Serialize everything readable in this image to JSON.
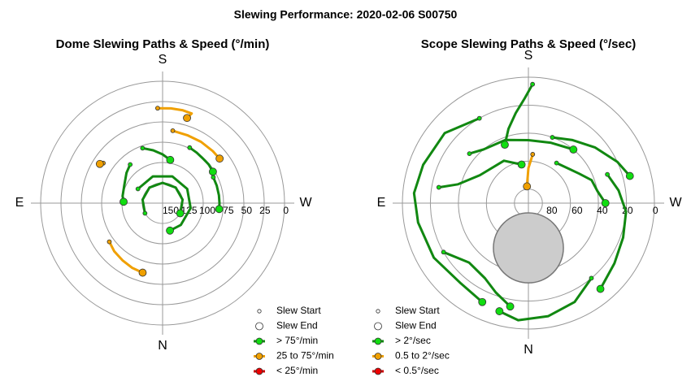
{
  "title": "Slewing Performance: 2020-02-06 S00750",
  "chart_data": [
    {
      "type": "polar",
      "title": "Dome Slewing Paths & Speed (°/min)",
      "directions": [
        "S",
        "W",
        "N",
        "E"
      ],
      "rlim": [
        150,
        0
      ],
      "rticks": [
        150,
        125,
        100,
        75,
        50,
        25,
        0
      ],
      "legend": [
        {
          "label": "Slew Start"
        },
        {
          "label": "Slew End"
        },
        {
          "label": "> 75°/min",
          "color": "#118811",
          "marker_color": "#11dd11"
        },
        {
          "label": "25 to 75°/min",
          "color": "#f0a000",
          "marker_color": "#f0a000"
        },
        {
          "label": "< 25°/min",
          "color": "#cc0000",
          "marker_color": "#ee0000"
        }
      ],
      "series": [
        {
          "color": "#f0a000",
          "marker_color": "#f0a000",
          "az": [
            177,
            185,
            192,
            198,
            196
          ],
          "alt": [
            33,
            33,
            33,
            34,
            41
          ]
        },
        {
          "color": "#f0a000",
          "marker_color": "#f0a000",
          "az": [
            188,
            200,
            212,
            224,
            232
          ],
          "alt": [
            60,
            61,
            61,
            61,
            61
          ]
        },
        {
          "color": "#118811",
          "marker_color": "#11dd11",
          "az": [
            206,
            214,
            222,
            230,
            238
          ],
          "alt": [
            74,
            75,
            76,
            76,
            77
          ]
        },
        {
          "color": "#118811",
          "marker_color": "#11dd11",
          "az": [
            243,
            252,
            262,
            270,
            276
          ],
          "alt": [
            80,
            80,
            80,
            80,
            80
          ]
        },
        {
          "color": "#118811",
          "marker_color": "#11dd11",
          "az": [
            120,
            160,
            200,
            240,
            280,
            320,
            345
          ],
          "alt": [
            115,
            115,
            115,
            115,
            115,
            115,
            115
          ]
        },
        {
          "color": "#118811",
          "marker_color": "#11dd11",
          "az": [
            60,
            100,
            140,
            180,
            220,
            260,
            300
          ],
          "alt": [
            125,
            125,
            125,
            125,
            125,
            125,
            125
          ]
        },
        {
          "color": "#118811",
          "marker_color": "#11dd11",
          "az": [
            140,
            130,
            115,
            100,
            92
          ],
          "alt": [
            88,
            92,
            98,
            100,
            102
          ]
        },
        {
          "color": "#118811",
          "marker_color": "#11dd11",
          "az": [
            160,
            170,
            180,
            190
          ],
          "alt": [
            78,
            84,
            90,
            96
          ]
        },
        {
          "color": "#f0a000",
          "marker_color": "#f0a000",
          "az": [
            54,
            45,
            35,
            25,
            16
          ],
          "alt": [
            69,
            66,
            64,
            62,
            61
          ]
        },
        {
          "color": "#f0a000",
          "marker_color": "#f0a000",
          "az": [
            124,
            122
          ],
          "alt": [
            62,
            59
          ]
        }
      ]
    },
    {
      "type": "polar",
      "title": "Scope Slewing Paths & Speed (°/sec)",
      "directions": [
        "S",
        "W",
        "N",
        "E"
      ],
      "rlim": [
        90,
        0
      ],
      "rticks": [
        80,
        60,
        40,
        20,
        0
      ],
      "exclusion": {
        "az": 0,
        "alt": 58,
        "radius": 25
      },
      "legend": [
        {
          "label": "Slew Start"
        },
        {
          "label": "Slew End"
        },
        {
          "label": "> 2°/sec",
          "color": "#118811",
          "marker_color": "#11dd11"
        },
        {
          "label": "0.5 to 2°/sec",
          "color": "#f0a000",
          "marker_color": "#f0a000"
        },
        {
          "label": "< 0.5°/sec",
          "color": "#cc0000",
          "marker_color": "#ee0000"
        }
      ],
      "series": [
        {
          "color": "#118811",
          "marker_color": "#11dd11",
          "az": [
            182,
            178,
            172,
            165,
            158
          ],
          "alt": [
            5,
            15,
            25,
            35,
            45
          ]
        },
        {
          "color": "#118811",
          "marker_color": "#11dd11",
          "az": [
            150,
            130,
            110,
            95,
            80,
            60,
            40,
            25
          ],
          "alt": [
            20,
            12,
            10,
            8,
            10,
            12,
            15,
            12
          ]
        },
        {
          "color": "#118811",
          "marker_color": "#11dd11",
          "az": [
            200,
            215,
            230,
            245,
            255
          ],
          "alt": [
            40,
            35,
            28,
            20,
            15
          ]
        },
        {
          "color": "#118811",
          "marker_color": "#11dd11",
          "az": [
            250,
            262,
            275,
            290,
            305,
            320
          ],
          "alt": [
            30,
            25,
            20,
            18,
            15,
            10
          ]
        },
        {
          "color": "#118811",
          "marker_color": "#11dd11",
          "az": [
            130,
            140,
            160,
            180,
            200,
            220
          ],
          "alt": [
            35,
            40,
            42,
            45,
            44,
            40
          ]
        },
        {
          "color": "#118811",
          "marker_color": "#11dd11",
          "az": [
            320,
            335,
            350,
            5,
            15
          ],
          "alt": [
            20,
            12,
            8,
            6,
            10
          ]
        },
        {
          "color": "#118811",
          "marker_color": "#11dd11",
          "az": [
            100,
            105,
            120,
            150,
            170
          ],
          "alt": [
            25,
            38,
            50,
            55,
            62
          ]
        },
        {
          "color": "#f0a000",
          "marker_color": "#f0a000",
          "az": [
            185,
            180,
            175
          ],
          "alt": [
            55,
            65,
            78
          ]
        },
        {
          "color": "#118811",
          "marker_color": "#11dd11",
          "az": [
            215,
            230,
            240,
            250,
            260,
            270
          ],
          "alt": [
            55,
            52,
            48,
            42,
            40,
            35
          ]
        },
        {
          "color": "#118811",
          "marker_color": "#11dd11",
          "az": [
            60,
            45,
            30,
            20,
            10
          ],
          "alt": [
            20,
            30,
            28,
            22,
            15
          ]
        }
      ]
    }
  ]
}
